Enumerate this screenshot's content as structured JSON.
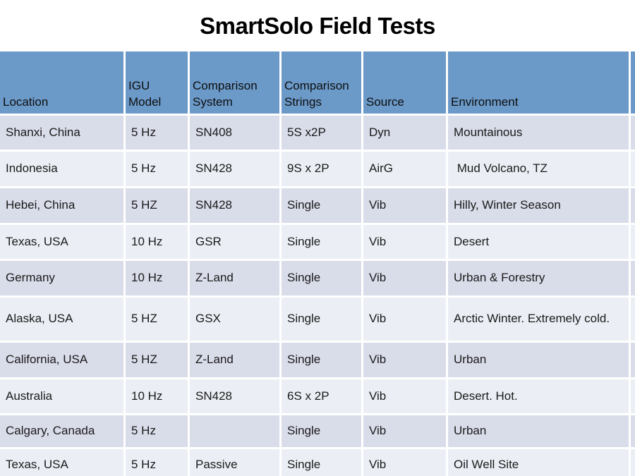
{
  "title": "SmartSolo Field Tests",
  "table": {
    "columns": [
      "Location",
      "IGU Model",
      "Comparison System",
      "Comparison Strings",
      "Source",
      "Environment"
    ],
    "rows": [
      [
        "Shanxi, China",
        "5 Hz",
        "SN408",
        "5S x2P",
        "Dyn",
        "Mountainous"
      ],
      [
        "Indonesia",
        "5 Hz",
        "SN428",
        "9S x 2P",
        "AirG",
        " Mud Volcano, TZ"
      ],
      [
        "Hebei, China",
        "5 HZ",
        "SN428",
        "Single",
        "Vib",
        "Hilly, Winter Season"
      ],
      [
        "Texas, USA",
        "10 Hz",
        "GSR",
        "Single",
        "Vib",
        "Desert"
      ],
      [
        "Germany",
        "10 Hz",
        "Z-Land",
        "Single",
        "Vib",
        "Urban & Forestry"
      ],
      [
        "Alaska, USA",
        "5 HZ",
        "GSX",
        "Single",
        "Vib",
        "Arctic Winter. Extremely cold."
      ],
      [
        "California, USA",
        "5 HZ",
        "Z-Land",
        "Single",
        "Vib",
        "Urban"
      ],
      [
        "Australia",
        "10 Hz",
        "SN428",
        "6S x 2P",
        "Vib",
        "Desert. Hot."
      ],
      [
        "Calgary, Canada",
        "5 Hz",
        "",
        "Single",
        "Vib",
        "Urban"
      ],
      [
        "Texas, USA",
        "5 Hz",
        "Passive",
        "Single",
        "Vib",
        "Oil Well Site"
      ]
    ]
  },
  "colors": {
    "header_bg": "#6B99C8",
    "header_text": "#0e0e0e",
    "row_odd": "#D9DCE9",
    "row_even": "#EBEFF5",
    "title_color": "#000000",
    "cell_text": "#1a1a1a"
  }
}
